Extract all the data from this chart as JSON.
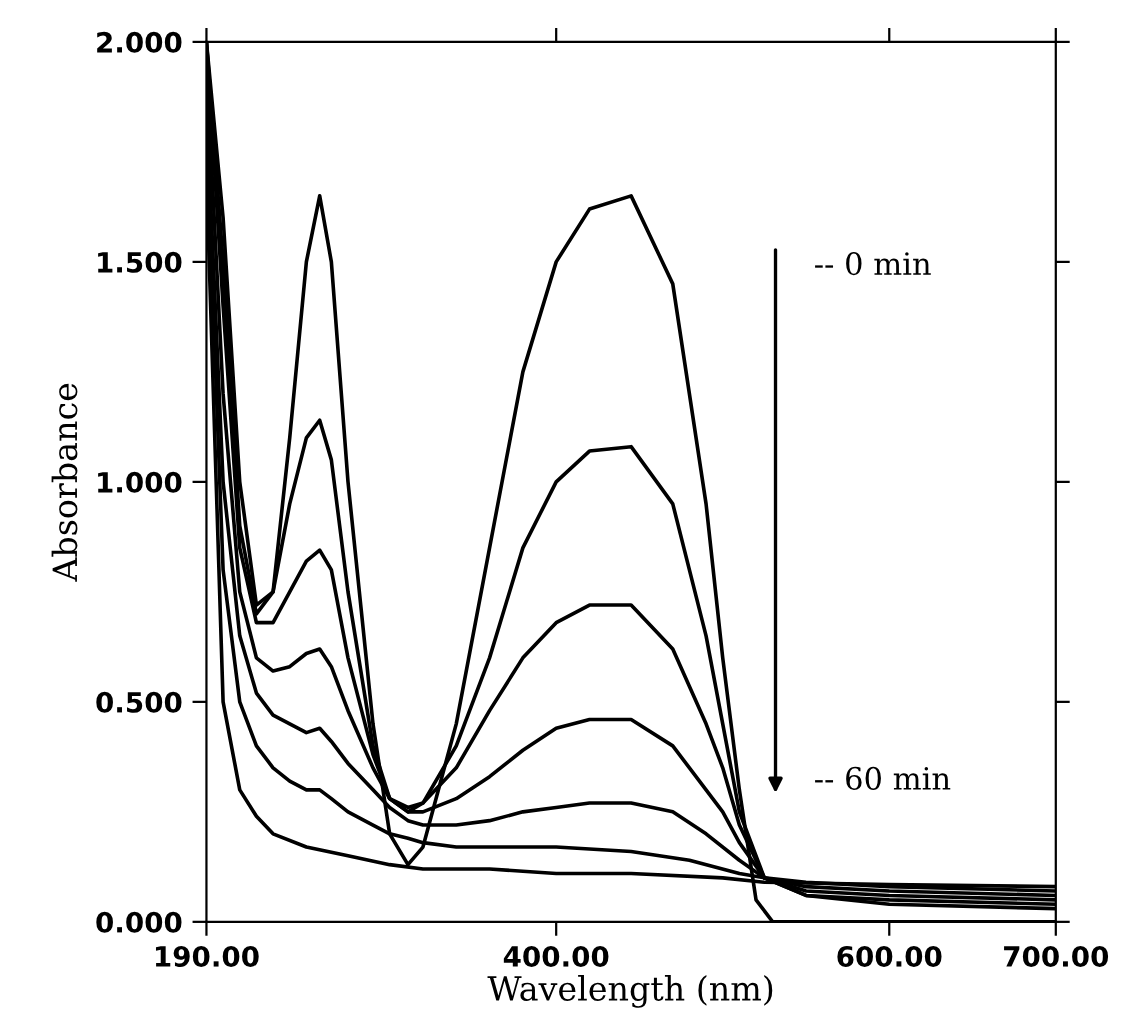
{
  "chart_data": {
    "type": "line",
    "xlabel": "Wavelength (nm)",
    "ylabel": "Absorbance",
    "xlim": [
      190,
      700
    ],
    "xticks": [
      {
        "value": 190,
        "label": "190.00"
      },
      {
        "value": 400,
        "label": "400.00"
      },
      {
        "value": 600,
        "label": "600.00"
      },
      {
        "value": 700,
        "label": "700.00"
      }
    ],
    "ylim": [
      0,
      2.0
    ],
    "yticks": [
      {
        "value": 0,
        "label": "0.000"
      },
      {
        "value": 0.5,
        "label": "0.500"
      },
      {
        "value": 1.0,
        "label": "1.000"
      },
      {
        "value": 1.5,
        "label": "1.500"
      },
      {
        "value": 2.0,
        "label": "2.000"
      }
    ],
    "grid": false,
    "legend": false,
    "marker": "none",
    "line_style": "solid",
    "annotations": [
      "-- 0 min",
      "-- 60 min"
    ],
    "series": [
      {
        "color": "#000000",
        "x": [
          190,
          200,
          210,
          220,
          230,
          240,
          250,
          258,
          265,
          275,
          290,
          300,
          311,
          320,
          340,
          360,
          380,
          400,
          420,
          445,
          470,
          490,
          500,
          510,
          520,
          530,
          600,
          700
        ],
        "values": [
          2.0,
          1.6,
          1.0,
          0.72,
          0.75,
          1.1,
          1.5,
          1.65,
          1.5,
          1.0,
          0.45,
          0.2,
          0.13,
          0.17,
          0.45,
          0.85,
          1.25,
          1.5,
          1.62,
          1.65,
          1.45,
          0.95,
          0.6,
          0.3,
          0.05,
          0.0,
          0.0,
          0.0
        ]
      },
      {
        "color": "#000000",
        "x": [
          190,
          200,
          210,
          220,
          230,
          240,
          250,
          258,
          265,
          275,
          290,
          300,
          311,
          320,
          340,
          360,
          380,
          400,
          420,
          445,
          470,
          490,
          500,
          510,
          525,
          550,
          600,
          700
        ],
        "values": [
          2.0,
          1.5,
          0.9,
          0.7,
          0.75,
          0.95,
          1.1,
          1.14,
          1.05,
          0.75,
          0.4,
          0.28,
          0.25,
          0.27,
          0.4,
          0.6,
          0.85,
          1.0,
          1.07,
          1.08,
          0.95,
          0.65,
          0.45,
          0.25,
          0.1,
          0.06,
          0.04,
          0.03
        ]
      },
      {
        "color": "#000000",
        "x": [
          190,
          200,
          210,
          220,
          230,
          240,
          250,
          258,
          265,
          275,
          290,
          300,
          311,
          320,
          340,
          360,
          380,
          400,
          420,
          445,
          470,
          490,
          500,
          510,
          525,
          550,
          600,
          700
        ],
        "values": [
          2.0,
          1.4,
          0.85,
          0.68,
          0.68,
          0.75,
          0.82,
          0.845,
          0.8,
          0.6,
          0.38,
          0.28,
          0.26,
          0.27,
          0.35,
          0.48,
          0.6,
          0.68,
          0.72,
          0.72,
          0.62,
          0.45,
          0.35,
          0.22,
          0.1,
          0.06,
          0.05,
          0.04
        ]
      },
      {
        "color": "#000000",
        "x": [
          190,
          200,
          210,
          220,
          230,
          240,
          250,
          258,
          265,
          275,
          290,
          300,
          311,
          320,
          340,
          360,
          380,
          400,
          420,
          445,
          470,
          490,
          500,
          510,
          525,
          550,
          600,
          700
        ],
        "values": [
          1.95,
          1.2,
          0.75,
          0.6,
          0.57,
          0.58,
          0.61,
          0.62,
          0.58,
          0.48,
          0.35,
          0.28,
          0.25,
          0.25,
          0.28,
          0.33,
          0.39,
          0.44,
          0.46,
          0.46,
          0.4,
          0.3,
          0.25,
          0.18,
          0.1,
          0.07,
          0.06,
          0.05
        ]
      },
      {
        "color": "#000000",
        "x": [
          190,
          200,
          210,
          220,
          230,
          240,
          250,
          258,
          265,
          275,
          290,
          300,
          311,
          320,
          340,
          360,
          380,
          400,
          420,
          445,
          470,
          490,
          510,
          525,
          550,
          600,
          700
        ],
        "values": [
          1.85,
          1.0,
          0.65,
          0.52,
          0.47,
          0.45,
          0.43,
          0.44,
          0.41,
          0.36,
          0.3,
          0.26,
          0.23,
          0.22,
          0.22,
          0.23,
          0.25,
          0.26,
          0.27,
          0.27,
          0.25,
          0.2,
          0.14,
          0.1,
          0.08,
          0.07,
          0.06
        ]
      },
      {
        "color": "#000000",
        "x": [
          190,
          200,
          210,
          220,
          230,
          240,
          250,
          258,
          265,
          275,
          290,
          300,
          311,
          320,
          340,
          360,
          400,
          445,
          480,
          510,
          525,
          550,
          600,
          700
        ],
        "values": [
          1.8,
          0.8,
          0.5,
          0.4,
          0.35,
          0.32,
          0.3,
          0.3,
          0.28,
          0.25,
          0.22,
          0.2,
          0.19,
          0.18,
          0.17,
          0.17,
          0.17,
          0.16,
          0.14,
          0.11,
          0.1,
          0.09,
          0.08,
          0.07
        ]
      },
      {
        "color": "#000000",
        "x": [
          190,
          200,
          210,
          220,
          230,
          250,
          275,
          300,
          320,
          360,
          400,
          445,
          500,
          525,
          600,
          700
        ],
        "values": [
          1.7,
          0.5,
          0.3,
          0.24,
          0.2,
          0.17,
          0.15,
          0.13,
          0.12,
          0.12,
          0.11,
          0.11,
          0.1,
          0.09,
          0.085,
          0.08
        ]
      }
    ]
  }
}
